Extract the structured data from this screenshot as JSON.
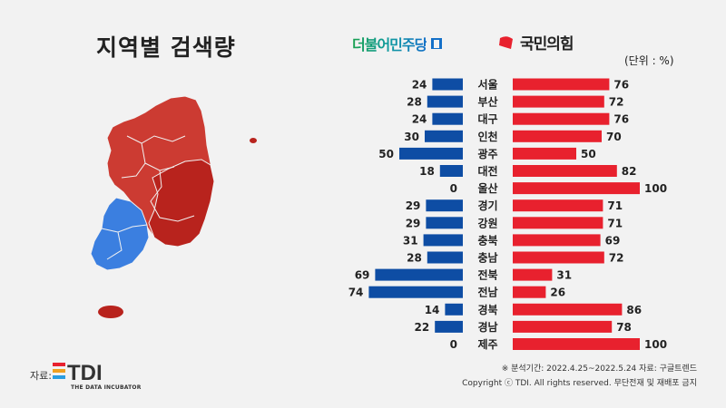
{
  "title": "지역별 검색량",
  "unit": "(단위 : %)",
  "parties": {
    "left": {
      "name": "더불어민주당",
      "color": "#0e4da4"
    },
    "right": {
      "name": "국민의힘",
      "color": "#e8212e"
    }
  },
  "map": {
    "blue_color": "#3b7fe0",
    "red_color": "#cc3b32",
    "dark_red_color": "#b8231d"
  },
  "chart_data": {
    "type": "bar",
    "orientation": "horizontal-diverging",
    "categories": [
      "서울",
      "부산",
      "대구",
      "인천",
      "광주",
      "대전",
      "울산",
      "경기",
      "강원",
      "충북",
      "충남",
      "전북",
      "전남",
      "경북",
      "경남",
      "제주"
    ],
    "series": [
      {
        "name": "더불어민주당",
        "color": "#0e4da4",
        "values": [
          24,
          28,
          24,
          30,
          50,
          18,
          0,
          29,
          29,
          31,
          28,
          69,
          74,
          14,
          22,
          0
        ]
      },
      {
        "name": "국민의힘",
        "color": "#e8212e",
        "values": [
          76,
          72,
          76,
          70,
          50,
          82,
          100,
          71,
          71,
          69,
          72,
          31,
          26,
          86,
          78,
          100
        ]
      }
    ],
    "ylim": [
      0,
      100
    ]
  },
  "footer": {
    "note": "※ 분석기간: 2022.4.25~2022.5.24 자료: 구글트렌드",
    "copyright": "Copyright ⓒ TDI. All rights reserved. 무단전재 및 재배포 금지",
    "source_label": "자료:",
    "logo_text": "TDI",
    "logo_sub": "THE DATA INCUBATOR"
  }
}
